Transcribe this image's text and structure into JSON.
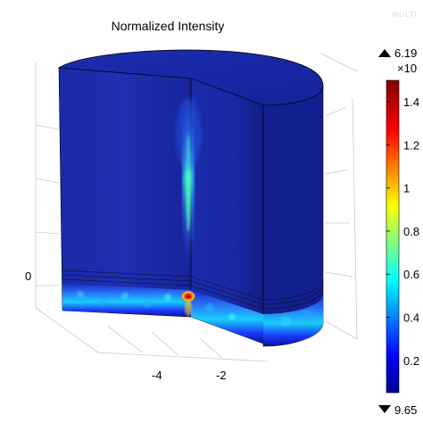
{
  "watermark": "MULTI",
  "chart_data": {
    "type": "heatmap",
    "title": "Normalized Intensity",
    "colorbar": {
      "max_label": "6.19",
      "exponent_label": "×10",
      "min_label": "9.65",
      "ticks": [
        {
          "value": 1.4,
          "label": "1.4"
        },
        {
          "value": 1.2,
          "label": "1.2"
        },
        {
          "value": 1.0,
          "label": "1"
        },
        {
          "value": 0.8,
          "label": "0.8"
        },
        {
          "value": 0.6,
          "label": "0.6"
        },
        {
          "value": 0.4,
          "label": "0.4"
        },
        {
          "value": 0.2,
          "label": "0.2"
        }
      ],
      "range": [
        0.05,
        1.5
      ],
      "colormap": [
        "#00008f",
        "#0000ff",
        "#00ffff",
        "#ffff00",
        "#ff0000",
        "#800000"
      ]
    },
    "axis_ticks": [
      {
        "label": "0",
        "axis": "z"
      },
      {
        "label": "-4",
        "axis": "x"
      },
      {
        "label": "-2",
        "axis": "x"
      }
    ],
    "grid": true
  }
}
